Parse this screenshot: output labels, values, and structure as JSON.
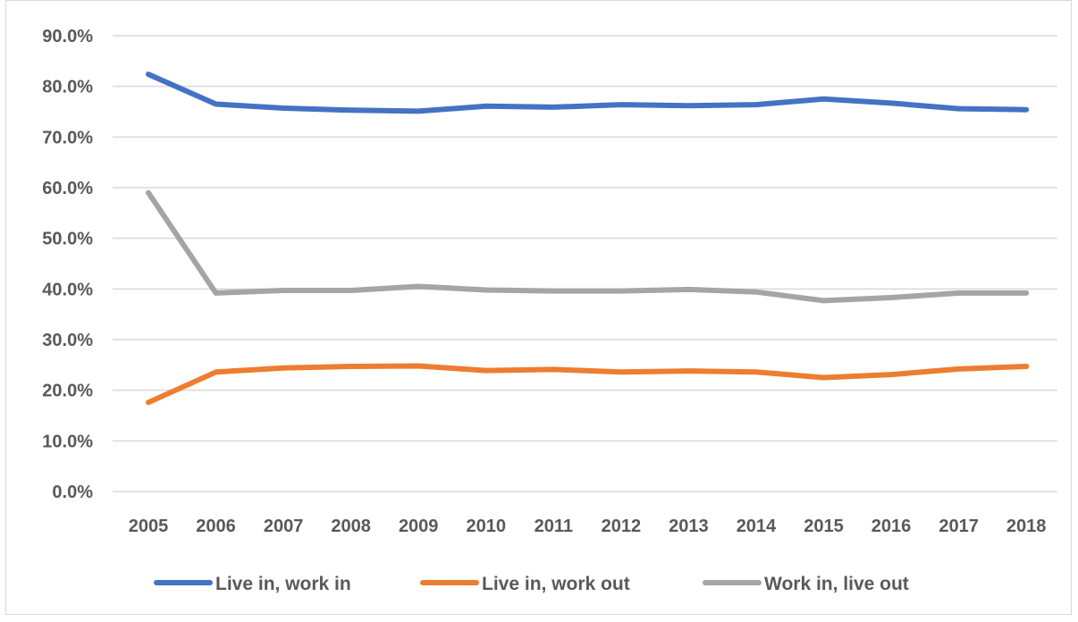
{
  "chart_data": {
    "type": "line",
    "title": "",
    "xlabel": "",
    "ylabel": "",
    "categories": [
      "2005",
      "2006",
      "2007",
      "2008",
      "2009",
      "2010",
      "2011",
      "2012",
      "2013",
      "2014",
      "2015",
      "2016",
      "2017",
      "2018"
    ],
    "y_ticks": [
      "0.0%",
      "10.0%",
      "20.0%",
      "30.0%",
      "40.0%",
      "50.0%",
      "60.0%",
      "70.0%",
      "80.0%",
      "90.0%"
    ],
    "ylim": [
      0,
      90
    ],
    "y_unit": "percent",
    "grid": true,
    "legend_position": "bottom",
    "series": [
      {
        "name": "Live in, work in",
        "color": "#4472c4",
        "values": [
          82.4,
          76.5,
          75.7,
          75.3,
          75.1,
          76.1,
          75.9,
          76.4,
          76.2,
          76.4,
          77.5,
          76.7,
          75.6,
          75.4
        ]
      },
      {
        "name": "Live in, work out",
        "color": "#ed7d31",
        "values": [
          17.6,
          23.6,
          24.4,
          24.7,
          24.8,
          23.9,
          24.1,
          23.6,
          23.8,
          23.6,
          22.5,
          23.1,
          24.2,
          24.7
        ]
      },
      {
        "name": "Work in, live out",
        "color": "#a5a5a5",
        "values": [
          59.0,
          39.2,
          39.7,
          39.7,
          40.5,
          39.8,
          39.6,
          39.6,
          39.9,
          39.4,
          37.7,
          38.3,
          39.2,
          39.2
        ]
      }
    ]
  }
}
